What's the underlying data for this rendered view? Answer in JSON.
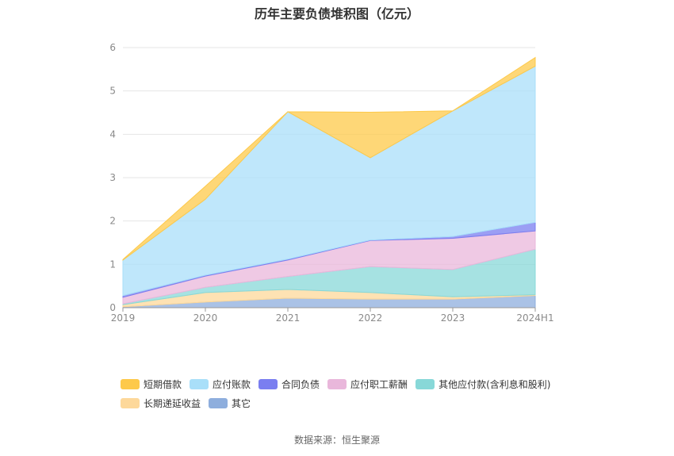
{
  "chart_data": {
    "type": "area",
    "title": "历年主要负债堆积图（亿元）",
    "categories": [
      "2019",
      "2020",
      "2021",
      "2022",
      "2023",
      "2024H1"
    ],
    "ylim": [
      0,
      6
    ],
    "yticks": [
      "0",
      "1",
      "2",
      "3",
      "4",
      "5",
      "6"
    ],
    "grid": true,
    "stacked": true,
    "legend_position": "bottom",
    "series": [
      {
        "name": "其它",
        "color": "#8eaedd",
        "values": [
          0.02,
          0.13,
          0.22,
          0.2,
          0.2,
          0.28
        ]
      },
      {
        "name": "长期递延收益",
        "color": "#fdd89a",
        "values": [
          0.05,
          0.22,
          0.2,
          0.15,
          0.05,
          0.02
        ]
      },
      {
        "name": "其他应付款(含利息和股利)",
        "color": "#88d8d8",
        "values": [
          0.02,
          0.12,
          0.3,
          0.6,
          0.63,
          1.05
        ]
      },
      {
        "name": "应付职工薪酬",
        "color": "#e9b7db",
        "values": [
          0.15,
          0.26,
          0.38,
          0.6,
          0.72,
          0.42
        ]
      },
      {
        "name": "合同负债",
        "color": "#7a7ef0",
        "values": [
          0.04,
          0.02,
          0.02,
          0.01,
          0.04,
          0.2
        ]
      },
      {
        "name": "应付账款",
        "color": "#a9dff9",
        "values": [
          0.82,
          1.75,
          3.4,
          1.9,
          2.9,
          3.6
        ]
      },
      {
        "name": "短期借款",
        "color": "#fdc94a",
        "values": [
          0.01,
          0.3,
          0.0,
          1.05,
          0.0,
          0.2
        ]
      }
    ]
  },
  "legend": {
    "row1": [
      "短期借款",
      "应付账款",
      "合同负债",
      "应付职工薪酬",
      "其他应付款(含利息和股利)"
    ],
    "row2": [
      "长期递延收益",
      "其它"
    ],
    "colors": {
      "短期借款": "#fdc94a",
      "应付账款": "#a9dff9",
      "合同负债": "#7a7ef0",
      "应付职工薪酬": "#e9b7db",
      "其他应付款(含利息和股利)": "#88d8d8",
      "长期递延收益": "#fdd89a",
      "其它": "#8eaedd"
    }
  },
  "footer": {
    "source": "数据来源：恒生聚源"
  }
}
